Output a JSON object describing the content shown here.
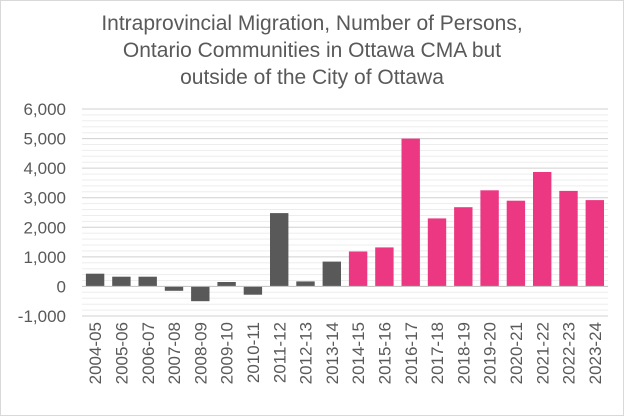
{
  "chart_data": {
    "type": "bar",
    "title_lines": [
      "Intraprovincial Migration, Number of Persons,",
      "Ontario Communities in Ottawa CMA but",
      "outside of the City of Ottawa"
    ],
    "xlabel": "",
    "ylabel": "",
    "ylim": [
      -1000,
      6000
    ],
    "yticks": [
      6000,
      5000,
      4000,
      3000,
      2000,
      1000,
      0,
      -1000
    ],
    "ytick_labels": [
      "6,000",
      "5,000",
      "4,000",
      "3,000",
      "2,000",
      "1,000",
      "0",
      "-1,000"
    ],
    "grid": true,
    "legend": false,
    "categories": [
      "2004-05",
      "2005-06",
      "2006-07",
      "2007-08",
      "2008-09",
      "2009-10",
      "2010-11",
      "2011-12",
      "2012-13",
      "2013-14",
      "2014-15",
      "2015-16",
      "2016-17",
      "2017-18",
      "2018-19",
      "2019-20",
      "2020-21",
      "2021-22",
      "2022-23",
      "2023-24"
    ],
    "values": [
      430,
      330,
      330,
      -150,
      -500,
      150,
      -280,
      2480,
      170,
      840,
      1180,
      1320,
      5000,
      2300,
      2680,
      3250,
      2900,
      3870,
      3230,
      2920
    ],
    "colors": [
      "#595959",
      "#595959",
      "#595959",
      "#595959",
      "#595959",
      "#595959",
      "#595959",
      "#595959",
      "#595959",
      "#595959",
      "#ec3883",
      "#ec3883",
      "#ec3883",
      "#ec3883",
      "#ec3883",
      "#ec3883",
      "#ec3883",
      "#ec3883",
      "#ec3883",
      "#ec3883"
    ]
  }
}
